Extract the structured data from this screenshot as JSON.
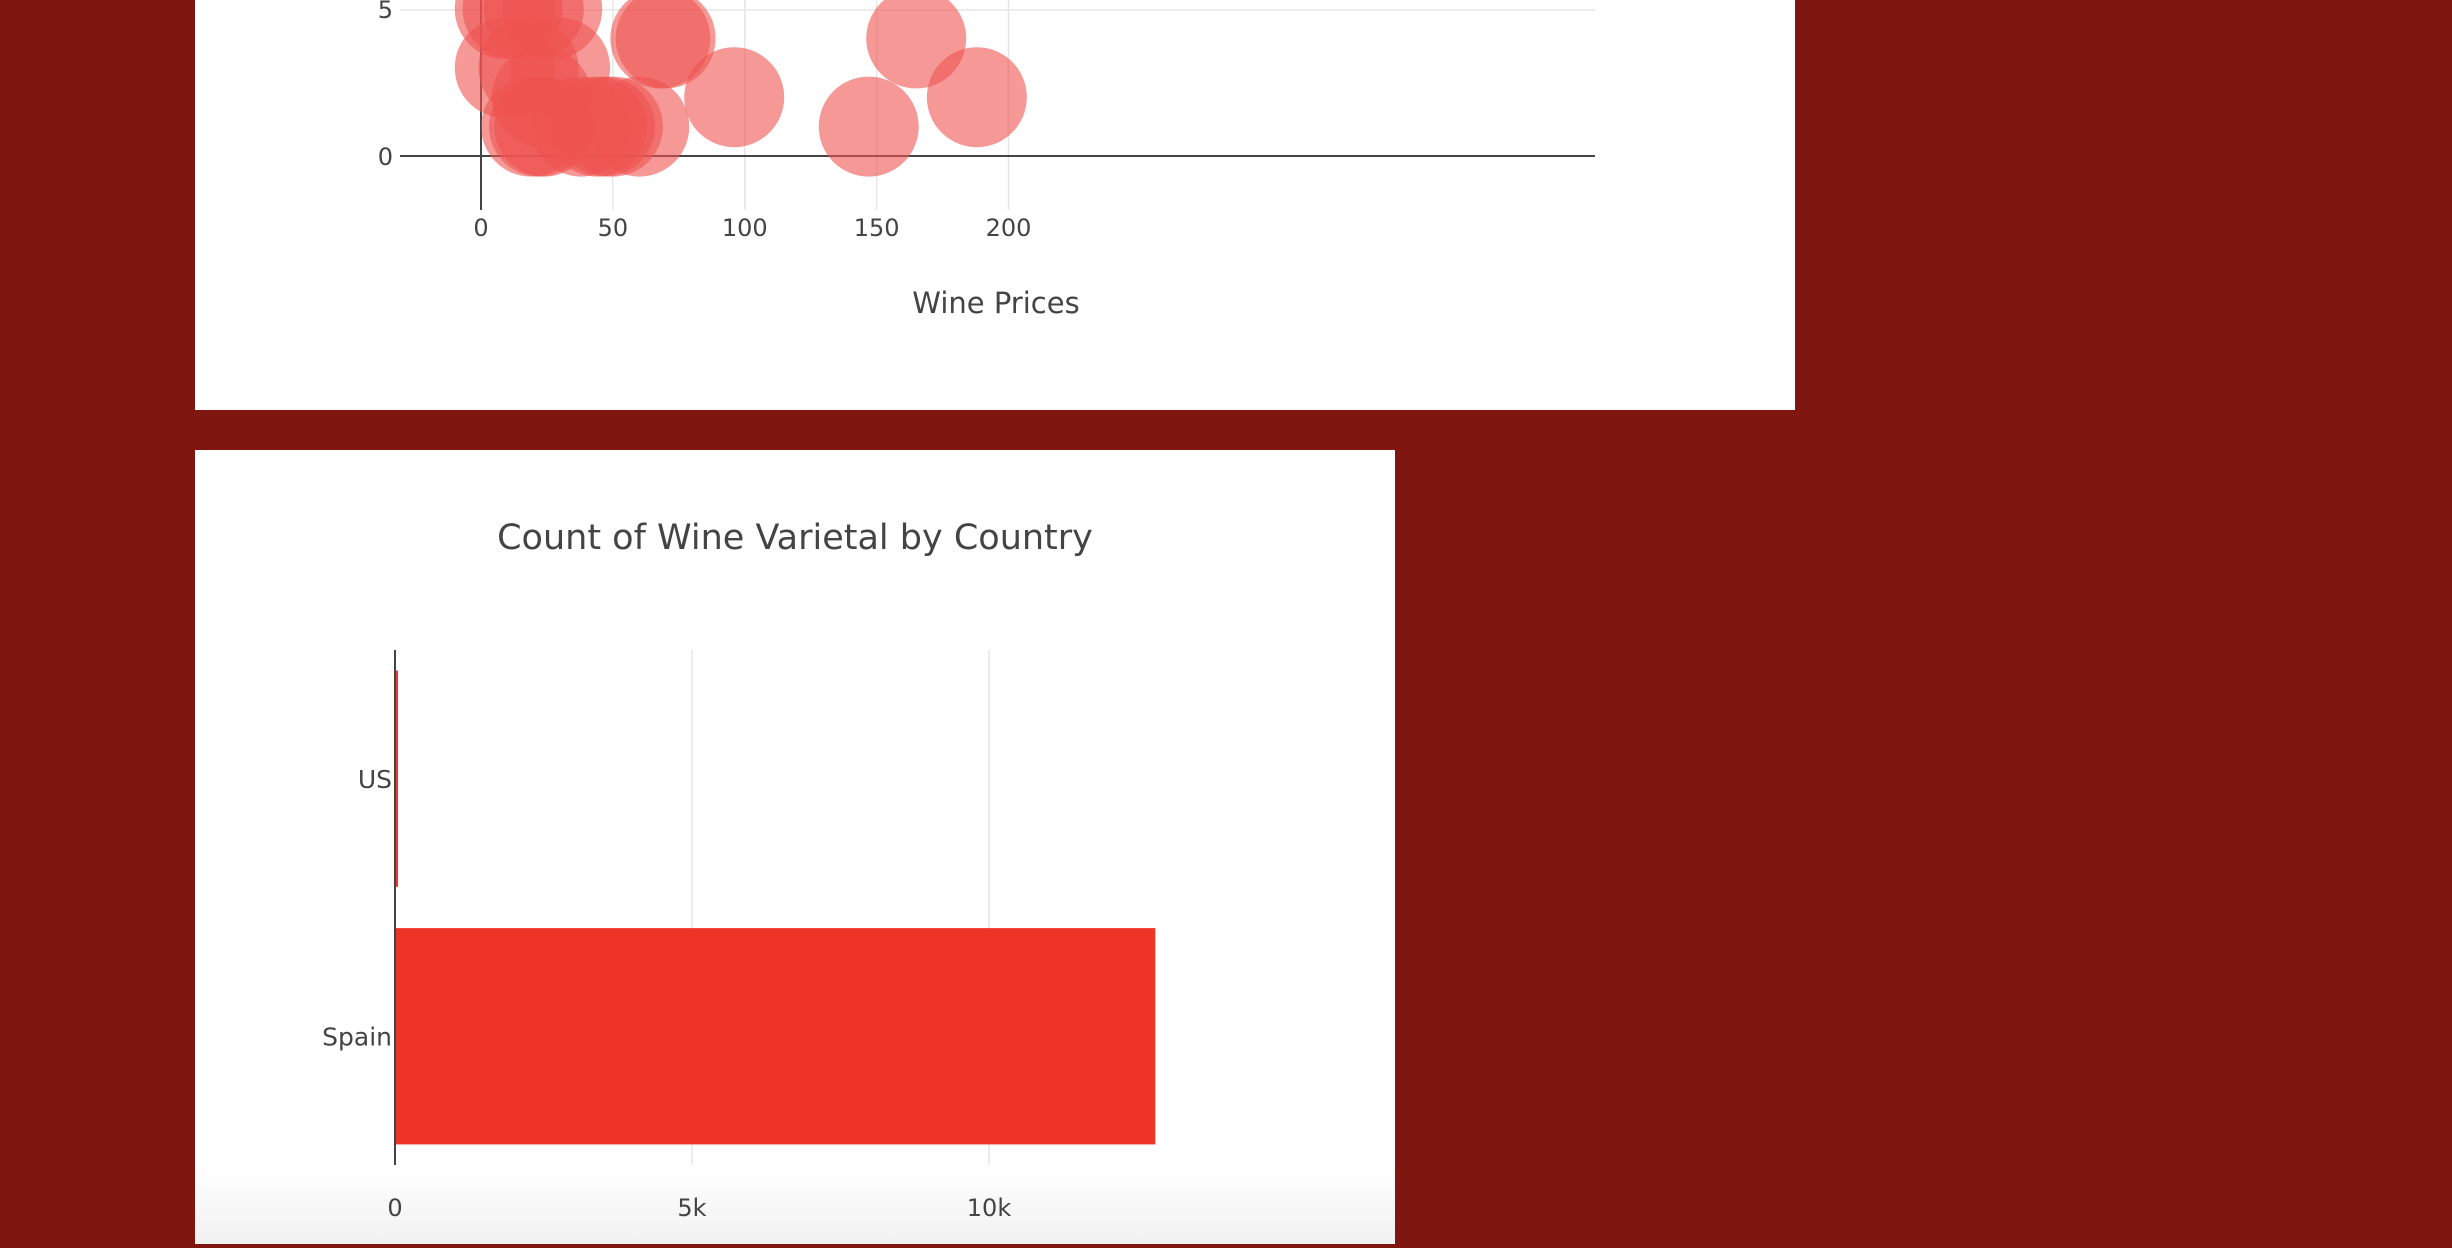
{
  "colors": {
    "page_background": "#7f1710",
    "bubble_fill": "#ef5350",
    "bar_fill": "#ee3426",
    "grid": "#e6e6e6",
    "axis": "#444444"
  },
  "chart_data": [
    {
      "type": "scatter",
      "title": "",
      "xlabel": "Wine Prices",
      "ylabel": "",
      "xlim": [
        -15,
        211
      ],
      "x_ticks": [
        0,
        50,
        100,
        150,
        200
      ],
      "x_tick_labels": [
        "0",
        "50",
        "100",
        "150",
        "200"
      ],
      "y_ticks_visible": [
        0,
        5
      ],
      "y_tick_labels": [
        "0",
        "5"
      ],
      "grid": true,
      "marker": "bubble",
      "points": [
        {
          "x": 9,
          "y": 5
        },
        {
          "x": 12,
          "y": 5
        },
        {
          "x": 20,
          "y": 5
        },
        {
          "x": 27,
          "y": 5
        },
        {
          "x": 9,
          "y": 3
        },
        {
          "x": 18,
          "y": 3
        },
        {
          "x": 30,
          "y": 3
        },
        {
          "x": 23,
          "y": 2
        },
        {
          "x": 22,
          "y": 1
        },
        {
          "x": 19,
          "y": 1
        },
        {
          "x": 24,
          "y": 1
        },
        {
          "x": 38,
          "y": 1
        },
        {
          "x": 44,
          "y": 1
        },
        {
          "x": 47,
          "y": 1
        },
        {
          "x": 50,
          "y": 1
        },
        {
          "x": 60,
          "y": 1
        },
        {
          "x": 68,
          "y": 4
        },
        {
          "x": 70,
          "y": 4
        },
        {
          "x": 96,
          "y": 2
        },
        {
          "x": 147,
          "y": 1
        },
        {
          "x": 165,
          "y": 4
        },
        {
          "x": 188,
          "y": 2
        }
      ]
    },
    {
      "type": "bar",
      "orientation": "horizontal",
      "title": "Count of Wine Varietal by Country",
      "xlabel": "",
      "ylabel": "",
      "categories": [
        "US",
        "Spain"
      ],
      "values": [
        50,
        12800
      ],
      "xlim": [
        0,
        20160
      ],
      "x_ticks": [
        0,
        5000,
        10000
      ],
      "x_tick_labels": [
        "0",
        "5k",
        "10k"
      ],
      "grid": true
    }
  ]
}
